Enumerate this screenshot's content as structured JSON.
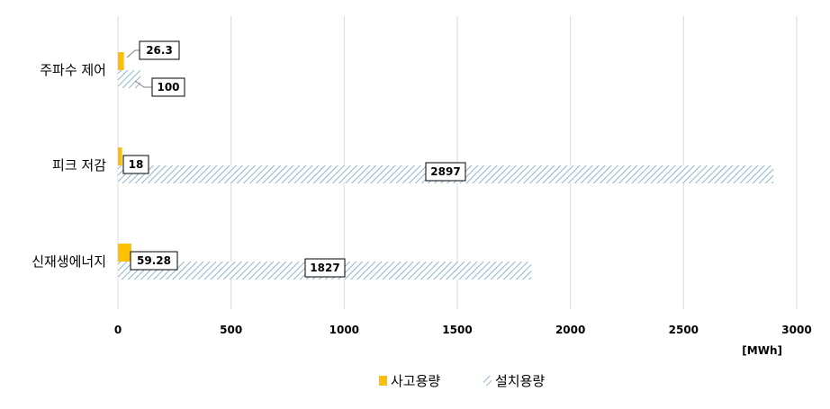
{
  "chart_data": {
    "type": "bar",
    "orientation": "horizontal",
    "categories": [
      "주파수 제어",
      "피크 저감",
      "신재생에너지"
    ],
    "series": [
      {
        "name": "사고용량",
        "values": [
          26.3,
          18,
          59.28
        ],
        "color": "#FFC000",
        "fill": "solid"
      },
      {
        "name": "설치용량",
        "values": [
          100,
          2897,
          1827
        ],
        "color": "#9DC3E6",
        "fill": "diagonal-hatch"
      }
    ],
    "data_labels": [
      [
        "26.3",
        "18",
        "59.28"
      ],
      [
        "100",
        "2897",
        "1827"
      ]
    ],
    "xlim": [
      0,
      3000
    ],
    "xticks": [
      "0",
      "500",
      "1000",
      "1500",
      "2000",
      "2500",
      "3000"
    ],
    "xunit": "[MWh]",
    "grid": "vertical",
    "legend": "bottom"
  }
}
